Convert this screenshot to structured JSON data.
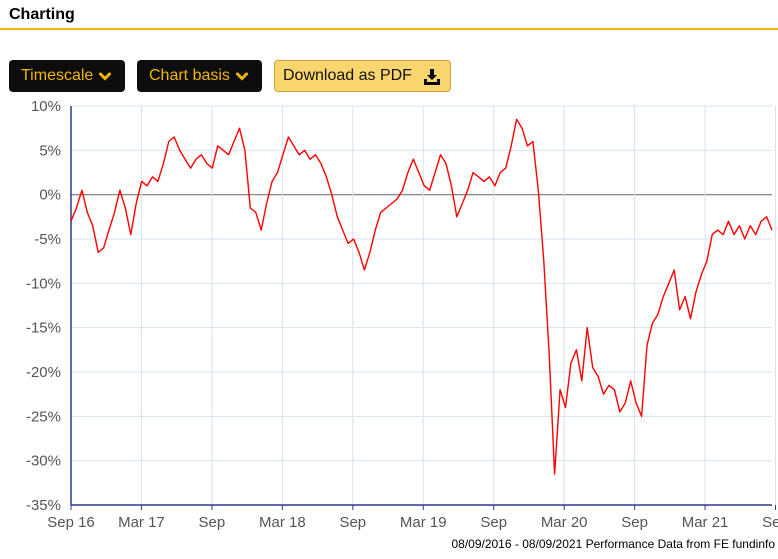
{
  "header": {
    "title": "Charting"
  },
  "toolbar": {
    "timescale_label": "Timescale",
    "chart_basis_label": "Chart basis",
    "download_label": "Download as PDF",
    "icons": {
      "dropdown": "chevron-down-icon",
      "download": "download-tray-icon"
    },
    "colors": {
      "dark_button": "#0d0d0d",
      "dark_button_text": "#f5b400",
      "download_button": "#f9d56e",
      "header_rule": "#f2b705"
    }
  },
  "chart_data": {
    "type": "line",
    "series": [
      {
        "color": "#ff0000",
        "values": [
          -3.0,
          -1.5,
          0.5,
          -2.0,
          -3.5,
          -6.5,
          -6.0,
          -4.0,
          -2.0,
          0.5,
          -1.5,
          -4.5,
          -1.0,
          1.5,
          1.0,
          2.0,
          1.5,
          3.5,
          6.0,
          6.5,
          5.0,
          4.0,
          3.0,
          4.0,
          4.5,
          3.5,
          3.0,
          5.5,
          5.0,
          4.5,
          6.0,
          7.5,
          5.0,
          -1.5,
          -2.0,
          -4.0,
          -1.0,
          1.5,
          2.5,
          4.5,
          6.5,
          5.5,
          4.5,
          5.0,
          4.0,
          4.5,
          3.5,
          2.0,
          0.0,
          -2.5,
          -4.0,
          -5.5,
          -5.0,
          -6.5,
          -8.5,
          -6.5,
          -4.0,
          -2.0,
          -1.5,
          -1.0,
          -0.5,
          0.5,
          2.5,
          4.0,
          2.5,
          1.0,
          0.5,
          2.5,
          4.5,
          3.5,
          1.0,
          -2.5,
          -1.0,
          0.5,
          2.5,
          2.0,
          1.5,
          2.0,
          1.0,
          2.5,
          3.0,
          5.5,
          8.5,
          7.5,
          5.5,
          6.0,
          0.5,
          -7.5,
          -18.0,
          -31.5,
          -22.0,
          -24.0,
          -19.0,
          -17.5,
          -21.0,
          -15.0,
          -19.5,
          -20.5,
          -22.5,
          -21.5,
          -22.0,
          -24.5,
          -23.5,
          -21.0,
          -23.5,
          -25.0,
          -17.0,
          -14.5,
          -13.5,
          -11.5,
          -10.0,
          -8.5,
          -13.0,
          -11.5,
          -14.0,
          -11.0,
          -9.0,
          -7.5,
          -4.5,
          -4.0,
          -4.5,
          -3.0,
          -4.5,
          -3.5,
          -5.0,
          -3.5,
          -4.5,
          -3.0,
          -2.5,
          -4.0
        ]
      }
    ],
    "x_ticks": [
      "Sep 16",
      "Mar 17",
      "Sep",
      "Mar 18",
      "Sep",
      "Mar 19",
      "Sep",
      "Mar 20",
      "Sep",
      "Mar 21",
      "Sep"
    ],
    "y_ticks": [
      10,
      5,
      0,
      -5,
      -10,
      -15,
      -20,
      -25,
      -30,
      -35
    ],
    "y_tick_labels": [
      "10%",
      "5%",
      "0%",
      "-5%",
      "-10%",
      "-15%",
      "-20%",
      "-25%",
      "-30%",
      "-35%"
    ],
    "ylim": [
      -35,
      10
    ],
    "grid": true,
    "zero_line": true,
    "footer": "08/09/2016 - 08/09/2021 Performance Data from FE fundinfo"
  }
}
